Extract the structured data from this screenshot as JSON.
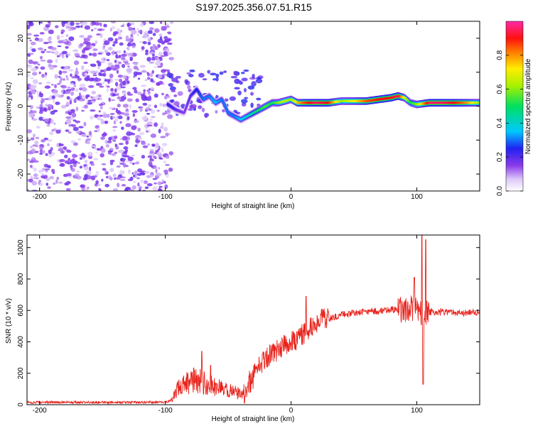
{
  "title": "S197.2025.356.07.51.R15",
  "chart_data": [
    {
      "type": "heatmap",
      "title": "S197.2025.356.07.51.R15",
      "xlabel": "Height of straight line (km)",
      "ylabel": "Frequency (Hz)",
      "xlim": [
        -210,
        150
      ],
      "ylim": [
        -25,
        25
      ],
      "xticks": [
        "-200",
        "-100",
        "0",
        "100"
      ],
      "xtick_values": [
        -200,
        -100,
        0,
        100
      ],
      "yticks": [
        "-20",
        "-10",
        "0",
        "10",
        "20"
      ],
      "ytick_values": [
        -20,
        -10,
        0,
        10,
        20
      ],
      "colorbar": {
        "label": "Normalized spectral amplitude",
        "range": [
          0,
          1
        ],
        "ticks": [
          "0.0",
          "0.2",
          "0.4",
          "0.6",
          "0.8"
        ],
        "tick_values": [
          0.0,
          0.2,
          0.4,
          0.6,
          0.8
        ]
      },
      "ridge": {
        "x": [
          -98,
          -92,
          -85,
          -80,
          -75,
          -70,
          -65,
          -60,
          -55,
          -50,
          -45,
          -40,
          -35,
          -30,
          -25,
          -20,
          -15,
          -10,
          -5,
          0,
          5,
          10,
          20,
          30,
          40,
          50,
          60,
          70,
          80,
          85,
          90,
          95,
          100,
          110,
          120,
          130,
          140,
          150
        ],
        "freq": [
          0.5,
          -1,
          -2,
          3,
          5,
          2,
          3,
          1,
          2,
          -2,
          -3,
          -4,
          -3,
          -2,
          -1,
          0,
          1,
          1,
          1.5,
          2,
          1,
          1,
          1,
          1,
          1.5,
          1.5,
          1.5,
          2,
          2.5,
          3,
          2.5,
          1,
          0.5,
          1,
          1,
          1,
          1,
          1
        ],
        "amplitude": [
          0.25,
          0.2,
          0.15,
          0.2,
          0.25,
          0.3,
          0.3,
          0.35,
          0.3,
          0.3,
          0.3,
          0.35,
          0.4,
          0.45,
          0.5,
          0.55,
          0.5,
          0.6,
          0.65,
          0.6,
          0.75,
          0.85,
          0.95,
          0.9,
          0.6,
          0.7,
          0.85,
          0.9,
          0.9,
          0.95,
          0.7,
          0.5,
          0.6,
          0.95,
          0.95,
          0.9,
          0.8,
          0.6
        ]
      },
      "noise_region": [
        -210,
        -95
      ]
    },
    {
      "type": "line",
      "xlabel": "Height of straight line (km)",
      "ylabel": "SNR (10 * v/v)",
      "xlim": [
        -210,
        150
      ],
      "ylim": [
        0,
        1080
      ],
      "xticks": [
        "-200",
        "-100",
        "0",
        "100"
      ],
      "xtick_values": [
        -200,
        -100,
        0,
        100
      ],
      "yticks": [
        "0",
        "200",
        "400",
        "600",
        "800",
        "1000"
      ],
      "ytick_values": [
        0,
        200,
        400,
        600,
        800,
        1000
      ],
      "series": [
        {
          "name": "SNR",
          "color": "#e8231c",
          "x": [
            -210,
            -190,
            -170,
            -150,
            -130,
            -110,
            -100,
            -95,
            -90,
            -85,
            -80,
            -75,
            -70,
            -65,
            -60,
            -55,
            -50,
            -45,
            -40,
            -35,
            -30,
            -25,
            -20,
            -15,
            -10,
            -5,
            0,
            5,
            10,
            15,
            20,
            25,
            30,
            40,
            50,
            60,
            70,
            80,
            90,
            95,
            100,
            103,
            105,
            107,
            110,
            120,
            130,
            140,
            150
          ],
          "y": [
            15,
            15,
            15,
            15,
            15,
            15,
            15,
            30,
            100,
            140,
            150,
            160,
            140,
            130,
            110,
            100,
            90,
            80,
            70,
            110,
            200,
            250,
            300,
            330,
            350,
            380,
            400,
            420,
            450,
            480,
            520,
            540,
            550,
            575,
            585,
            590,
            595,
            605,
            600,
            615,
            630,
            580,
            420,
            600,
            590,
            590,
            585,
            585,
            590
          ]
        }
      ],
      "spikes": [
        {
          "x": -71,
          "y": 340
        },
        {
          "x": -64,
          "y": 250
        },
        {
          "x": -41,
          "y": 100
        },
        {
          "x": -37,
          "y": 10
        },
        {
          "x": -17,
          "y": 380
        },
        {
          "x": 12,
          "y": 690
        },
        {
          "x": 98,
          "y": 810
        },
        {
          "x": 104,
          "y": 1080
        },
        {
          "x": 105,
          "y": 130
        },
        {
          "x": 107,
          "y": 1050
        }
      ]
    }
  ]
}
